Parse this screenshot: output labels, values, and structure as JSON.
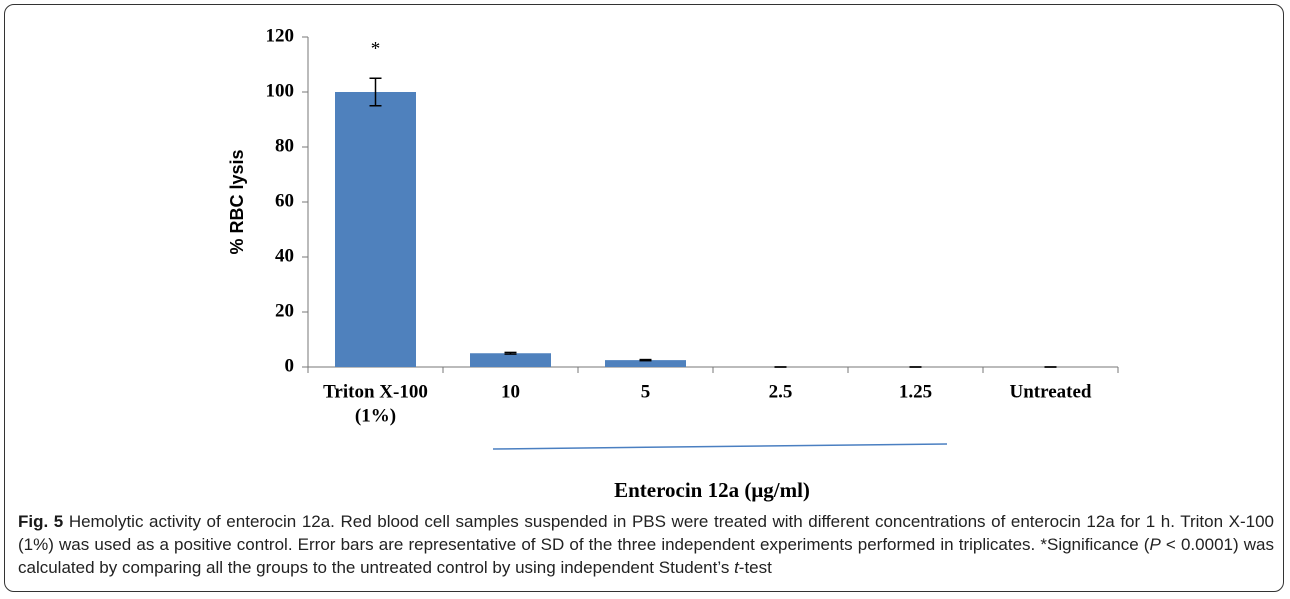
{
  "chart_data": {
    "type": "bar",
    "categories": [
      [
        "Triton X-100",
        "(1%)"
      ],
      "10",
      "5",
      "2.5",
      "1.25",
      "Untreated"
    ],
    "values": [
      100,
      5,
      2.5,
      0,
      0,
      0
    ],
    "errors": [
      5,
      0.3,
      0.2,
      0,
      0,
      0
    ],
    "color": "#4f81bd",
    "ylim": [
      0,
      120
    ],
    "yticks": [
      0,
      20,
      40,
      60,
      80,
      100,
      120
    ],
    "y_label": "% RBC lysis",
    "x_label": "Enterocin 12a (μg/ml)",
    "annotations": [
      {
        "text": "*",
        "category": 0
      }
    ]
  },
  "caption": {
    "label": "Fig. 5",
    "parts": [
      " Hemolytic activity of enterocin 12a. Red blood cell samples suspended in PBS were treated with different concentrations of enterocin 12a for 1 h. Triton X-100 (1%) was used as a positive control. Error bars are representative of SD of the three independent experiments performed in triplicates. *Significance (",
      "P",
      " < 0.0001) was calculated by comparing all the groups to the untreated control by using independent Student’s ",
      "t",
      "-test"
    ]
  }
}
